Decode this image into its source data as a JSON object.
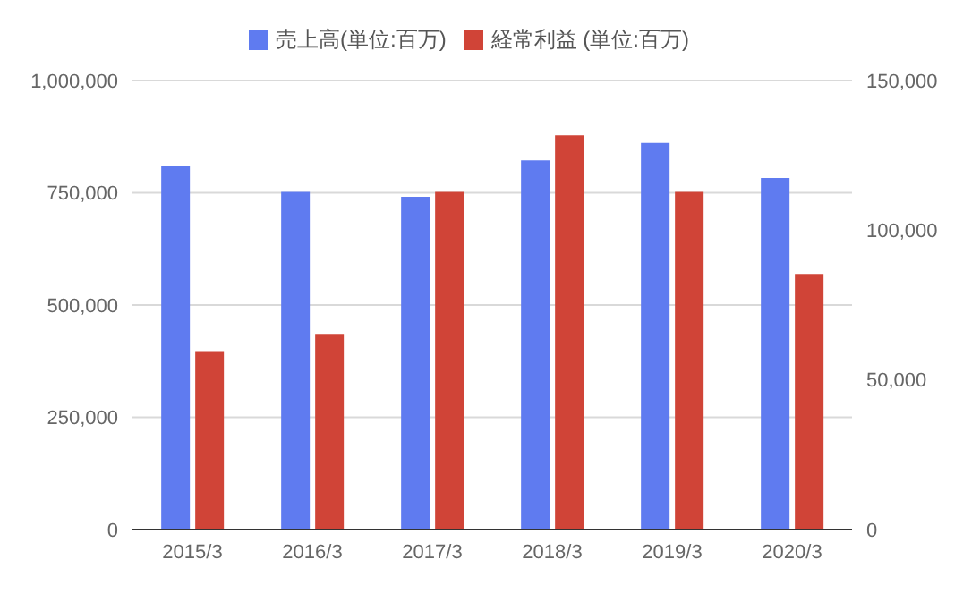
{
  "chart_data": {
    "type": "bar",
    "categories": [
      "2015/3",
      "2016/3",
      "2017/3",
      "2018/3",
      "2019/3",
      "2020/3"
    ],
    "series": [
      {
        "name": "売上高(単位:百万)",
        "color": "#5f7bf0",
        "values": [
          809000,
          752000,
          741000,
          822000,
          861000,
          783000
        ]
      },
      {
        "name": "経常利益 (単位:百万)",
        "color": "#d04437",
        "values": [
          59600,
          65400,
          112800,
          131700,
          112800,
          85400
        ],
        "axis": "y2"
      }
    ],
    "ylim": [
      0,
      1000000
    ],
    "yticks": [
      {
        "value": 0,
        "label": "0"
      },
      {
        "value": 250000,
        "label": "250,000"
      },
      {
        "value": 500000,
        "label": "500,000"
      },
      {
        "value": 750000,
        "label": "750,000"
      },
      {
        "value": 1000000,
        "label": "1,000,000"
      }
    ],
    "y2lim": [
      0,
      150000
    ],
    "y2ticks": [
      {
        "value": 0,
        "label": "0"
      },
      {
        "value": 50000,
        "label": "50,000"
      },
      {
        "value": 100000,
        "label": "100,000"
      },
      {
        "value": 150000,
        "label": "150,000"
      }
    ],
    "grid": "y",
    "legend": "top"
  }
}
